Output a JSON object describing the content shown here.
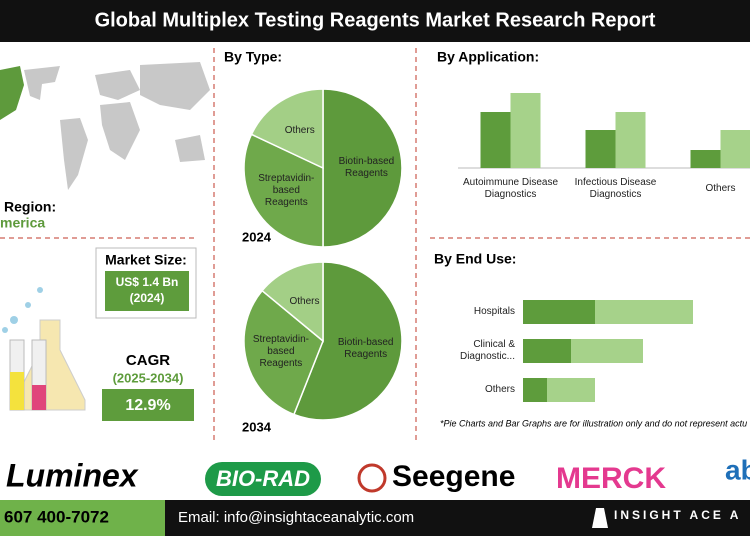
{
  "header": {
    "title": "Global Multiplex Testing Reagents Market Research Report"
  },
  "region": {
    "label": "Region:",
    "value": "merica"
  },
  "market_size": {
    "label": "Market Size:",
    "value": "US$ 1.4 Bn",
    "year": "(2024)"
  },
  "cagr": {
    "label": "CAGR",
    "period": "(2025-2034)",
    "value": "12.9%"
  },
  "sections": {
    "type": "By Type:",
    "application": "By Application:",
    "end_use": "By End Use:"
  },
  "chart_data": [
    {
      "type": "pie",
      "title": "2024",
      "categories": [
        "Biotin-based Reagents",
        "Streptavidin-based Reagents",
        "Others"
      ],
      "values": [
        50,
        32,
        18
      ],
      "colors": [
        "#5e9a3c",
        "#6fa94b",
        "#a3cf86"
      ]
    },
    {
      "type": "pie",
      "title": "2034",
      "categories": [
        "Biotin-based Reagents",
        "Streptavidin-based Reagents",
        "Others"
      ],
      "values": [
        56,
        30,
        14
      ],
      "colors": [
        "#5e9a3c",
        "#6fa94b",
        "#a3cf86"
      ]
    },
    {
      "type": "bar",
      "categories": [
        "Autoimmune Disease Diagnostics",
        "Infectious Disease Diagnostics",
        "Others"
      ],
      "series": [
        {
          "color": "#5e9c3c",
          "values": [
            56,
            38,
            18
          ]
        },
        {
          "color": "#a6d28a",
          "values": [
            75,
            56,
            38
          ]
        }
      ]
    },
    {
      "type": "stacked_barh",
      "categories": [
        "Hospitals",
        "Clinical & Diagnostic...",
        "Others"
      ],
      "series": [
        {
          "color": "#5e9c3c",
          "values": [
            72,
            48,
            24
          ]
        },
        {
          "color": "#a6d28a",
          "values": [
            98,
            72,
            48
          ]
        }
      ]
    }
  ],
  "note": "*Pie Charts and Bar Graphs are for illustration only and do not represent actu",
  "logos": [
    "Luminex",
    "BIO-RAD",
    "Seegene",
    "MERCK",
    "ab"
  ],
  "footer": {
    "phone": "607 400-7072",
    "email": "Email: info@insightaceanalytic.com",
    "brand": "INSIGHT ACE A"
  }
}
